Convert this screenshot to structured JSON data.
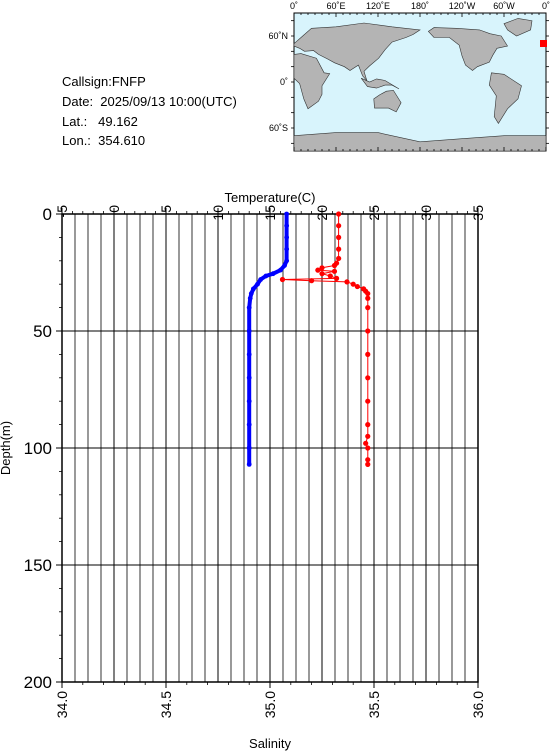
{
  "station": {
    "callsign": "Callsign:FNFP",
    "date": "Date:  2025/09/13 10:00(UTC)",
    "lat": "Lat.:   49.162",
    "lon": "Lon.:  354.610"
  },
  "map": {
    "top_labels": [
      "0˚",
      "60˚E",
      "120˚E",
      "180˚",
      "120˚W",
      "60˚W",
      "0˚"
    ],
    "side_labels": [
      "60˚N",
      "0˚",
      "60˚S"
    ],
    "ocean_color": "#d8f4fc",
    "land_color": "#b4b4b4",
    "marker_color": "#ff0000"
  },
  "chart_data": {
    "type": "line",
    "xlabel_top": "Temperature(C)",
    "xlabel_bottom": "Salinity",
    "ylabel": "Depth(m)",
    "temperature_ticks": [
      "-5",
      "0",
      "5",
      "10",
      "15",
      "20",
      "25",
      "30",
      "35"
    ],
    "salinity_ticks": [
      "34.0",
      "34.5",
      "35.0",
      "35.5",
      "36.0"
    ],
    "depth_ticks": [
      "0",
      "50",
      "100",
      "150",
      "200"
    ],
    "temperature_range": [
      -5,
      35
    ],
    "salinity_range": [
      34.0,
      36.0
    ],
    "depth_range": [
      0,
      200
    ],
    "grid": true,
    "series": [
      {
        "axis": "temperature",
        "color": "#0000ff",
        "points": [
          [
            16.6,
            0
          ],
          [
            16.6,
            5
          ],
          [
            16.6,
            10
          ],
          [
            16.6,
            15
          ],
          [
            16.6,
            20
          ],
          [
            16.4,
            22
          ],
          [
            16.0,
            24
          ],
          [
            15.3,
            25.5
          ],
          [
            14.6,
            26.5
          ],
          [
            14.1,
            28
          ],
          [
            13.8,
            30
          ],
          [
            13.4,
            32
          ],
          [
            13.2,
            34
          ],
          [
            13.1,
            36
          ],
          [
            13.0,
            40
          ],
          [
            13.0,
            50
          ],
          [
            13.0,
            60
          ],
          [
            13.0,
            70
          ],
          [
            13.0,
            80
          ],
          [
            13.0,
            90
          ],
          [
            13.0,
            100
          ],
          [
            13.0,
            107
          ]
        ]
      },
      {
        "axis": "salinity",
        "color": "#ff0000",
        "points": [
          [
            35.33,
            0
          ],
          [
            35.33,
            5
          ],
          [
            35.33,
            10
          ],
          [
            35.33,
            15
          ],
          [
            35.33,
            19
          ],
          [
            35.32,
            21
          ],
          [
            35.31,
            22
          ],
          [
            35.25,
            23
          ],
          [
            35.23,
            24
          ],
          [
            35.31,
            24.5
          ],
          [
            35.25,
            25.5
          ],
          [
            35.29,
            26.5
          ],
          [
            35.32,
            27.5
          ],
          [
            35.06,
            28
          ],
          [
            35.2,
            28.5
          ],
          [
            35.37,
            29
          ],
          [
            35.4,
            30
          ],
          [
            35.42,
            31
          ],
          [
            35.45,
            32
          ],
          [
            35.46,
            33
          ],
          [
            35.47,
            34
          ],
          [
            35.47,
            36
          ],
          [
            35.47,
            40
          ],
          [
            35.47,
            50
          ],
          [
            35.47,
            60
          ],
          [
            35.47,
            70
          ],
          [
            35.47,
            80
          ],
          [
            35.47,
            90
          ],
          [
            35.47,
            95
          ],
          [
            35.46,
            98
          ],
          [
            35.47,
            100
          ],
          [
            35.47,
            105
          ],
          [
            35.47,
            107
          ]
        ]
      }
    ]
  }
}
